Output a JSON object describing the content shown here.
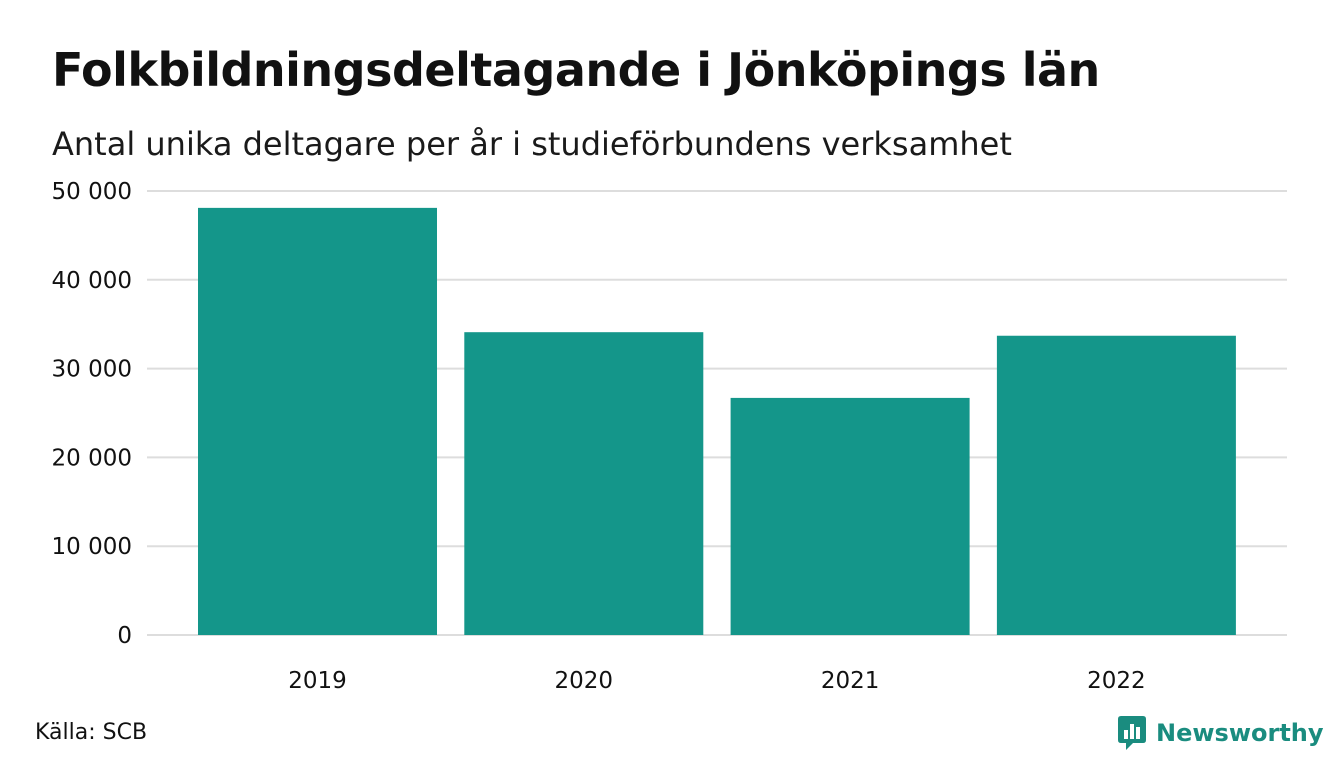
{
  "title": "Folkbildningsdeltagande i Jönköpings län",
  "subtitle": "Antal unika deltagare per år i studieförbundens verksamhet",
  "footer": {
    "source": "Källa: SCB",
    "brand": "Newsworthy"
  },
  "colors": {
    "bar": "#14968a",
    "grid": "#dddddd",
    "text": "#111111",
    "brand": "#1a8c7f"
  },
  "icons": {
    "brand_logo": "newsworthy-logo-icon"
  },
  "chart_data": {
    "type": "bar",
    "categories": [
      "2019",
      "2020",
      "2021",
      "2022"
    ],
    "values": [
      48100,
      34100,
      26700,
      33700
    ],
    "ylim": [
      0,
      50000
    ],
    "yticks": [
      0,
      10000,
      20000,
      30000,
      40000,
      50000
    ],
    "ytick_labels": [
      "0",
      "10 000",
      "20 000",
      "30 000",
      "40 000",
      "50 000"
    ],
    "xlabel": "",
    "ylabel": "",
    "grid": true,
    "legend": "none"
  }
}
